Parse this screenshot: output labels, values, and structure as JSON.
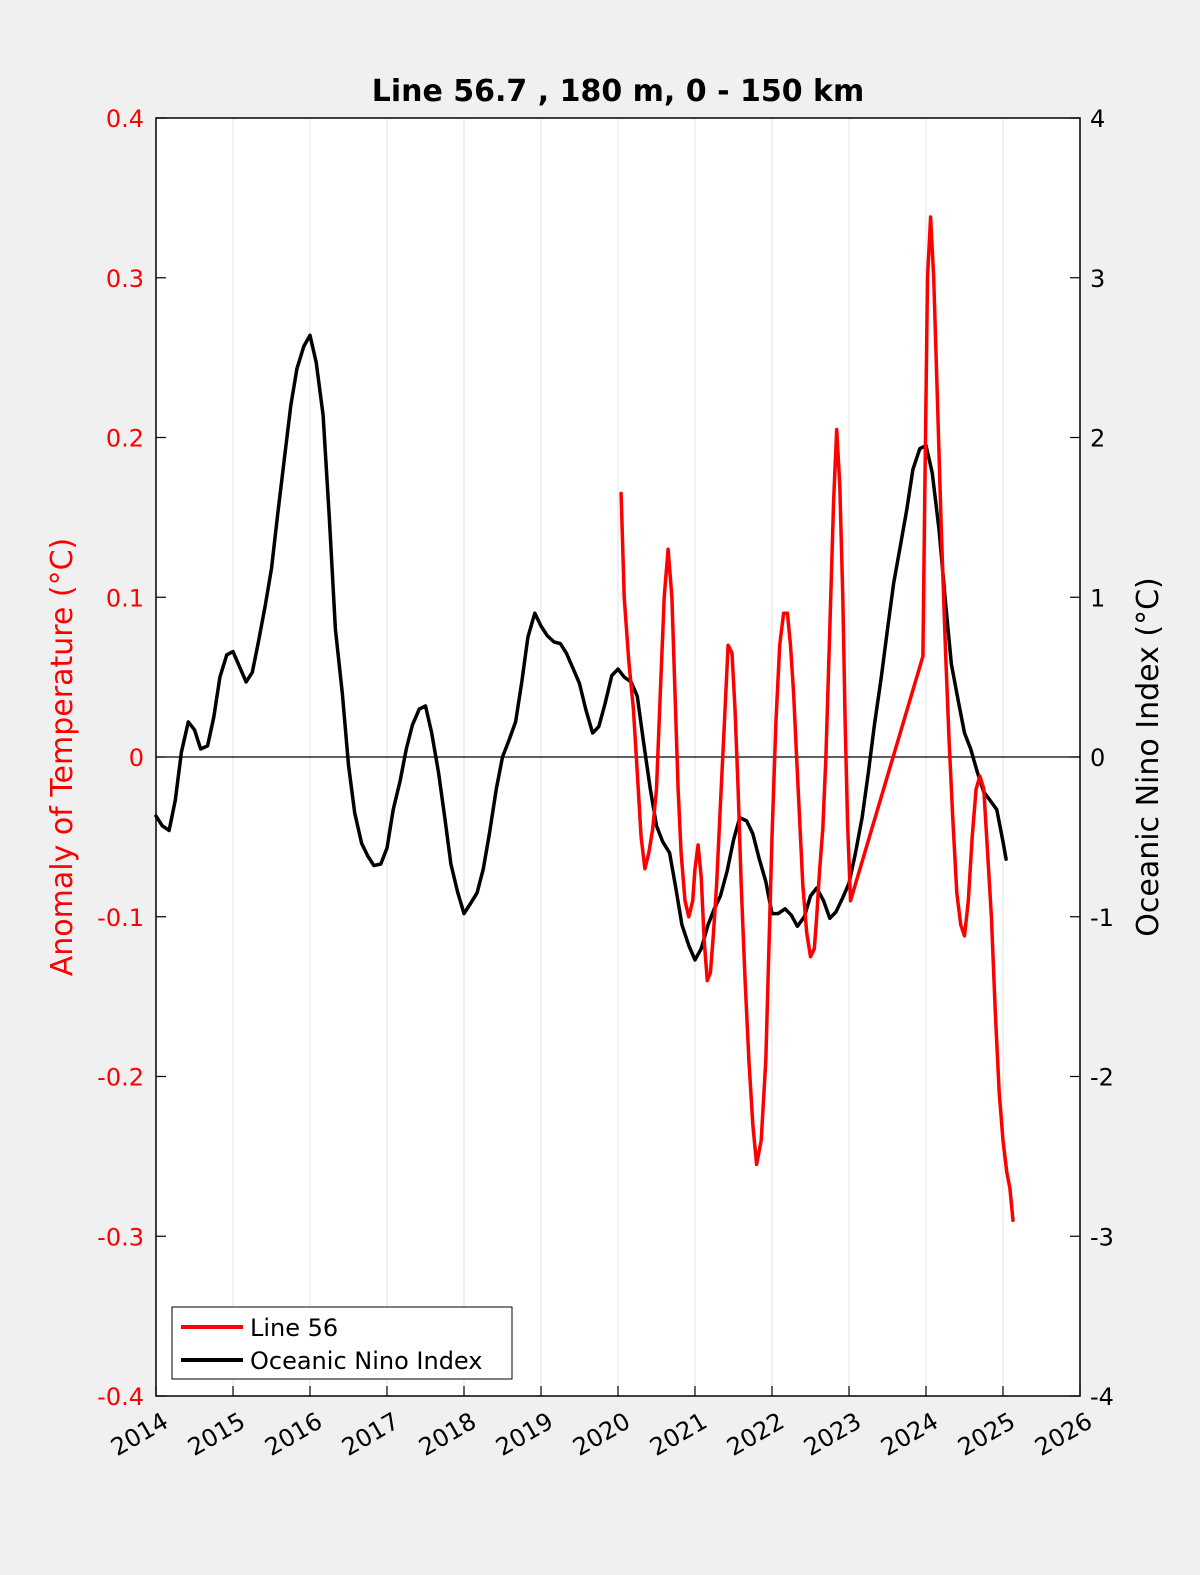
{
  "chart_data": {
    "type": "line",
    "title": "Line 56.7 , 180 m, 0 - 150 km",
    "ylabel_left": "Anomaly of Temperature (°C)",
    "ylabel_right": "Oceanic Nino Index (°C)",
    "xlim": [
      2014,
      2026
    ],
    "ylim_left": [
      -0.4,
      0.4
    ],
    "ylim_right": [
      -4,
      4
    ],
    "x_ticks": [
      "2014",
      "2015",
      "2016",
      "2017",
      "2018",
      "2019",
      "2020",
      "2021",
      "2022",
      "2023",
      "2024",
      "2025",
      "2026"
    ],
    "y_left_ticks": [
      "-0.4",
      "-0.3",
      "-0.2",
      "-0.1",
      "0",
      "0.1",
      "0.2",
      "0.3",
      "0.4"
    ],
    "y_right_ticks": [
      "-4",
      "-3",
      "-2",
      "-1",
      "0",
      "1",
      "2",
      "3",
      "4"
    ],
    "grid": "vertical",
    "legend_position": "bottom-left",
    "colors": {
      "line56": "#ff0000",
      "oni": "#000000",
      "left_axis": "#ff0000",
      "right_axis": "#000000"
    },
    "series": [
      {
        "name": "Line 56",
        "axis": "left",
        "color": "#ff0000",
        "x": [
          2020.04,
          2020.08,
          2020.14,
          2020.2,
          2020.25,
          2020.3,
          2020.35,
          2020.4,
          2020.45,
          2020.5,
          2020.55,
          2020.6,
          2020.65,
          2020.7,
          2020.74,
          2020.78,
          2020.82,
          2020.87,
          2020.92,
          2020.97,
          2021.0,
          2021.04,
          2021.08,
          2021.12,
          2021.16,
          2021.2,
          2021.24,
          2021.28,
          2021.33,
          2021.38,
          2021.43,
          2021.48,
          2021.52,
          2021.56,
          2021.6,
          2021.65,
          2021.7,
          2021.75,
          2021.8,
          2021.86,
          2021.92,
          2021.96,
          2022.0,
          2022.05,
          2022.1,
          2022.15,
          2022.2,
          2022.24,
          2022.28,
          2022.32,
          2022.36,
          2022.4,
          2022.45,
          2022.5,
          2022.55,
          2022.58,
          2022.62,
          2022.66,
          2022.7,
          2022.75,
          2022.8,
          2022.84,
          2022.88,
          2022.92,
          2022.95,
          2022.98,
          2023.02,
          2023.96,
          2023.98,
          2024.02,
          2024.06,
          2024.1,
          2024.15,
          2024.2,
          2024.25,
          2024.3,
          2024.35,
          2024.4,
          2024.45,
          2024.5,
          2024.55,
          2024.6,
          2024.65,
          2024.7,
          2024.75,
          2024.8,
          2024.85,
          2024.9,
          2024.95,
          2025.0,
          2025.05,
          2025.09,
          2025.13
        ],
        "values": [
          0.165,
          0.1,
          0.06,
          0.03,
          -0.01,
          -0.05,
          -0.07,
          -0.06,
          -0.045,
          -0.02,
          0.04,
          0.1,
          0.13,
          0.1,
          0.04,
          -0.02,
          -0.06,
          -0.09,
          -0.1,
          -0.09,
          -0.07,
          -0.055,
          -0.075,
          -0.115,
          -0.14,
          -0.135,
          -0.11,
          -0.08,
          -0.03,
          0.02,
          0.07,
          0.065,
          0.03,
          -0.02,
          -0.08,
          -0.14,
          -0.19,
          -0.23,
          -0.255,
          -0.24,
          -0.19,
          -0.12,
          -0.05,
          0.02,
          0.07,
          0.09,
          0.09,
          0.07,
          0.04,
          0.0,
          -0.04,
          -0.08,
          -0.11,
          -0.125,
          -0.12,
          -0.1,
          -0.07,
          -0.045,
          0.0,
          0.08,
          0.16,
          0.205,
          0.17,
          0.1,
          0.02,
          -0.04,
          -0.09,
          0.063,
          0.15,
          0.3,
          0.338,
          0.3,
          0.22,
          0.14,
          0.07,
          0.01,
          -0.04,
          -0.085,
          -0.105,
          -0.112,
          -0.09,
          -0.05,
          -0.02,
          -0.012,
          -0.02,
          -0.06,
          -0.1,
          -0.16,
          -0.21,
          -0.24,
          -0.26,
          -0.27,
          -0.29
        ]
      },
      {
        "name": "Oceanic Nino Index",
        "axis": "right",
        "color": "#000000",
        "x": [
          2014.0,
          2014.08,
          2014.17,
          2014.25,
          2014.33,
          2014.42,
          2014.5,
          2014.58,
          2014.67,
          2014.75,
          2014.83,
          2014.92,
          2015.0,
          2015.08,
          2015.17,
          2015.25,
          2015.33,
          2015.42,
          2015.5,
          2015.58,
          2015.67,
          2015.75,
          2015.83,
          2015.92,
          2016.0,
          2016.08,
          2016.17,
          2016.25,
          2016.33,
          2016.42,
          2016.5,
          2016.58,
          2016.67,
          2016.75,
          2016.83,
          2016.92,
          2017.0,
          2017.08,
          2017.17,
          2017.25,
          2017.33,
          2017.42,
          2017.5,
          2017.58,
          2017.67,
          2017.75,
          2017.83,
          2017.92,
          2018.0,
          2018.08,
          2018.17,
          2018.25,
          2018.33,
          2018.42,
          2018.5,
          2018.58,
          2018.67,
          2018.75,
          2018.83,
          2018.92,
          2019.0,
          2019.08,
          2019.17,
          2019.25,
          2019.33,
          2019.42,
          2019.5,
          2019.58,
          2019.67,
          2019.75,
          2019.83,
          2019.92,
          2020.0,
          2020.08,
          2020.17,
          2020.25,
          2020.33,
          2020.42,
          2020.5,
          2020.58,
          2020.67,
          2020.75,
          2020.83,
          2020.92,
          2021.0,
          2021.08,
          2021.17,
          2021.25,
          2021.33,
          2021.42,
          2021.5,
          2021.58,
          2021.67,
          2021.75,
          2021.83,
          2021.92,
          2022.0,
          2022.08,
          2022.17,
          2022.25,
          2022.33,
          2022.42,
          2022.5,
          2022.58,
          2022.67,
          2022.75,
          2022.83,
          2022.92,
          2023.0,
          2023.08,
          2023.17,
          2023.25,
          2023.33,
          2023.42,
          2023.5,
          2023.58,
          2023.67,
          2023.75,
          2023.83,
          2023.92,
          2024.0,
          2024.08,
          2024.17,
          2024.25,
          2024.33,
          2024.42,
          2024.5,
          2024.58,
          2024.67,
          2024.75,
          2024.83,
          2024.92,
          2025.0,
          2025.04
        ],
        "values": [
          -0.37,
          -0.43,
          -0.46,
          -0.27,
          0.03,
          0.22,
          0.17,
          0.05,
          0.07,
          0.25,
          0.5,
          0.64,
          0.66,
          0.57,
          0.47,
          0.53,
          0.72,
          0.95,
          1.18,
          1.52,
          1.88,
          2.2,
          2.43,
          2.57,
          2.64,
          2.47,
          2.14,
          1.5,
          0.8,
          0.4,
          -0.05,
          -0.35,
          -0.54,
          -0.62,
          -0.68,
          -0.67,
          -0.57,
          -0.33,
          -0.15,
          0.05,
          0.2,
          0.3,
          0.32,
          0.15,
          -0.1,
          -0.38,
          -0.67,
          -0.85,
          -0.98,
          -0.92,
          -0.85,
          -0.7,
          -0.48,
          -0.2,
          0.0,
          0.1,
          0.22,
          0.47,
          0.75,
          0.9,
          0.82,
          0.76,
          0.72,
          0.71,
          0.65,
          0.55,
          0.46,
          0.3,
          0.15,
          0.19,
          0.33,
          0.51,
          0.55,
          0.5,
          0.47,
          0.38,
          0.1,
          -0.2,
          -0.43,
          -0.53,
          -0.6,
          -0.82,
          -1.05,
          -1.18,
          -1.27,
          -1.2,
          -1.05,
          -0.95,
          -0.87,
          -0.71,
          -0.52,
          -0.38,
          -0.4,
          -0.48,
          -0.63,
          -0.78,
          -0.98,
          -0.98,
          -0.95,
          -0.99,
          -1.06,
          -1.0,
          -0.87,
          -0.82,
          -0.9,
          -1.01,
          -0.97,
          -0.88,
          -0.79,
          -0.61,
          -0.38,
          -0.1,
          0.2,
          0.5,
          0.8,
          1.09,
          1.33,
          1.55,
          1.8,
          1.93,
          1.95,
          1.78,
          1.42,
          0.98,
          0.58,
          0.35,
          0.15,
          0.05,
          -0.1,
          -0.22,
          -0.27,
          -0.33,
          -0.53,
          -0.64
        ]
      }
    ]
  }
}
